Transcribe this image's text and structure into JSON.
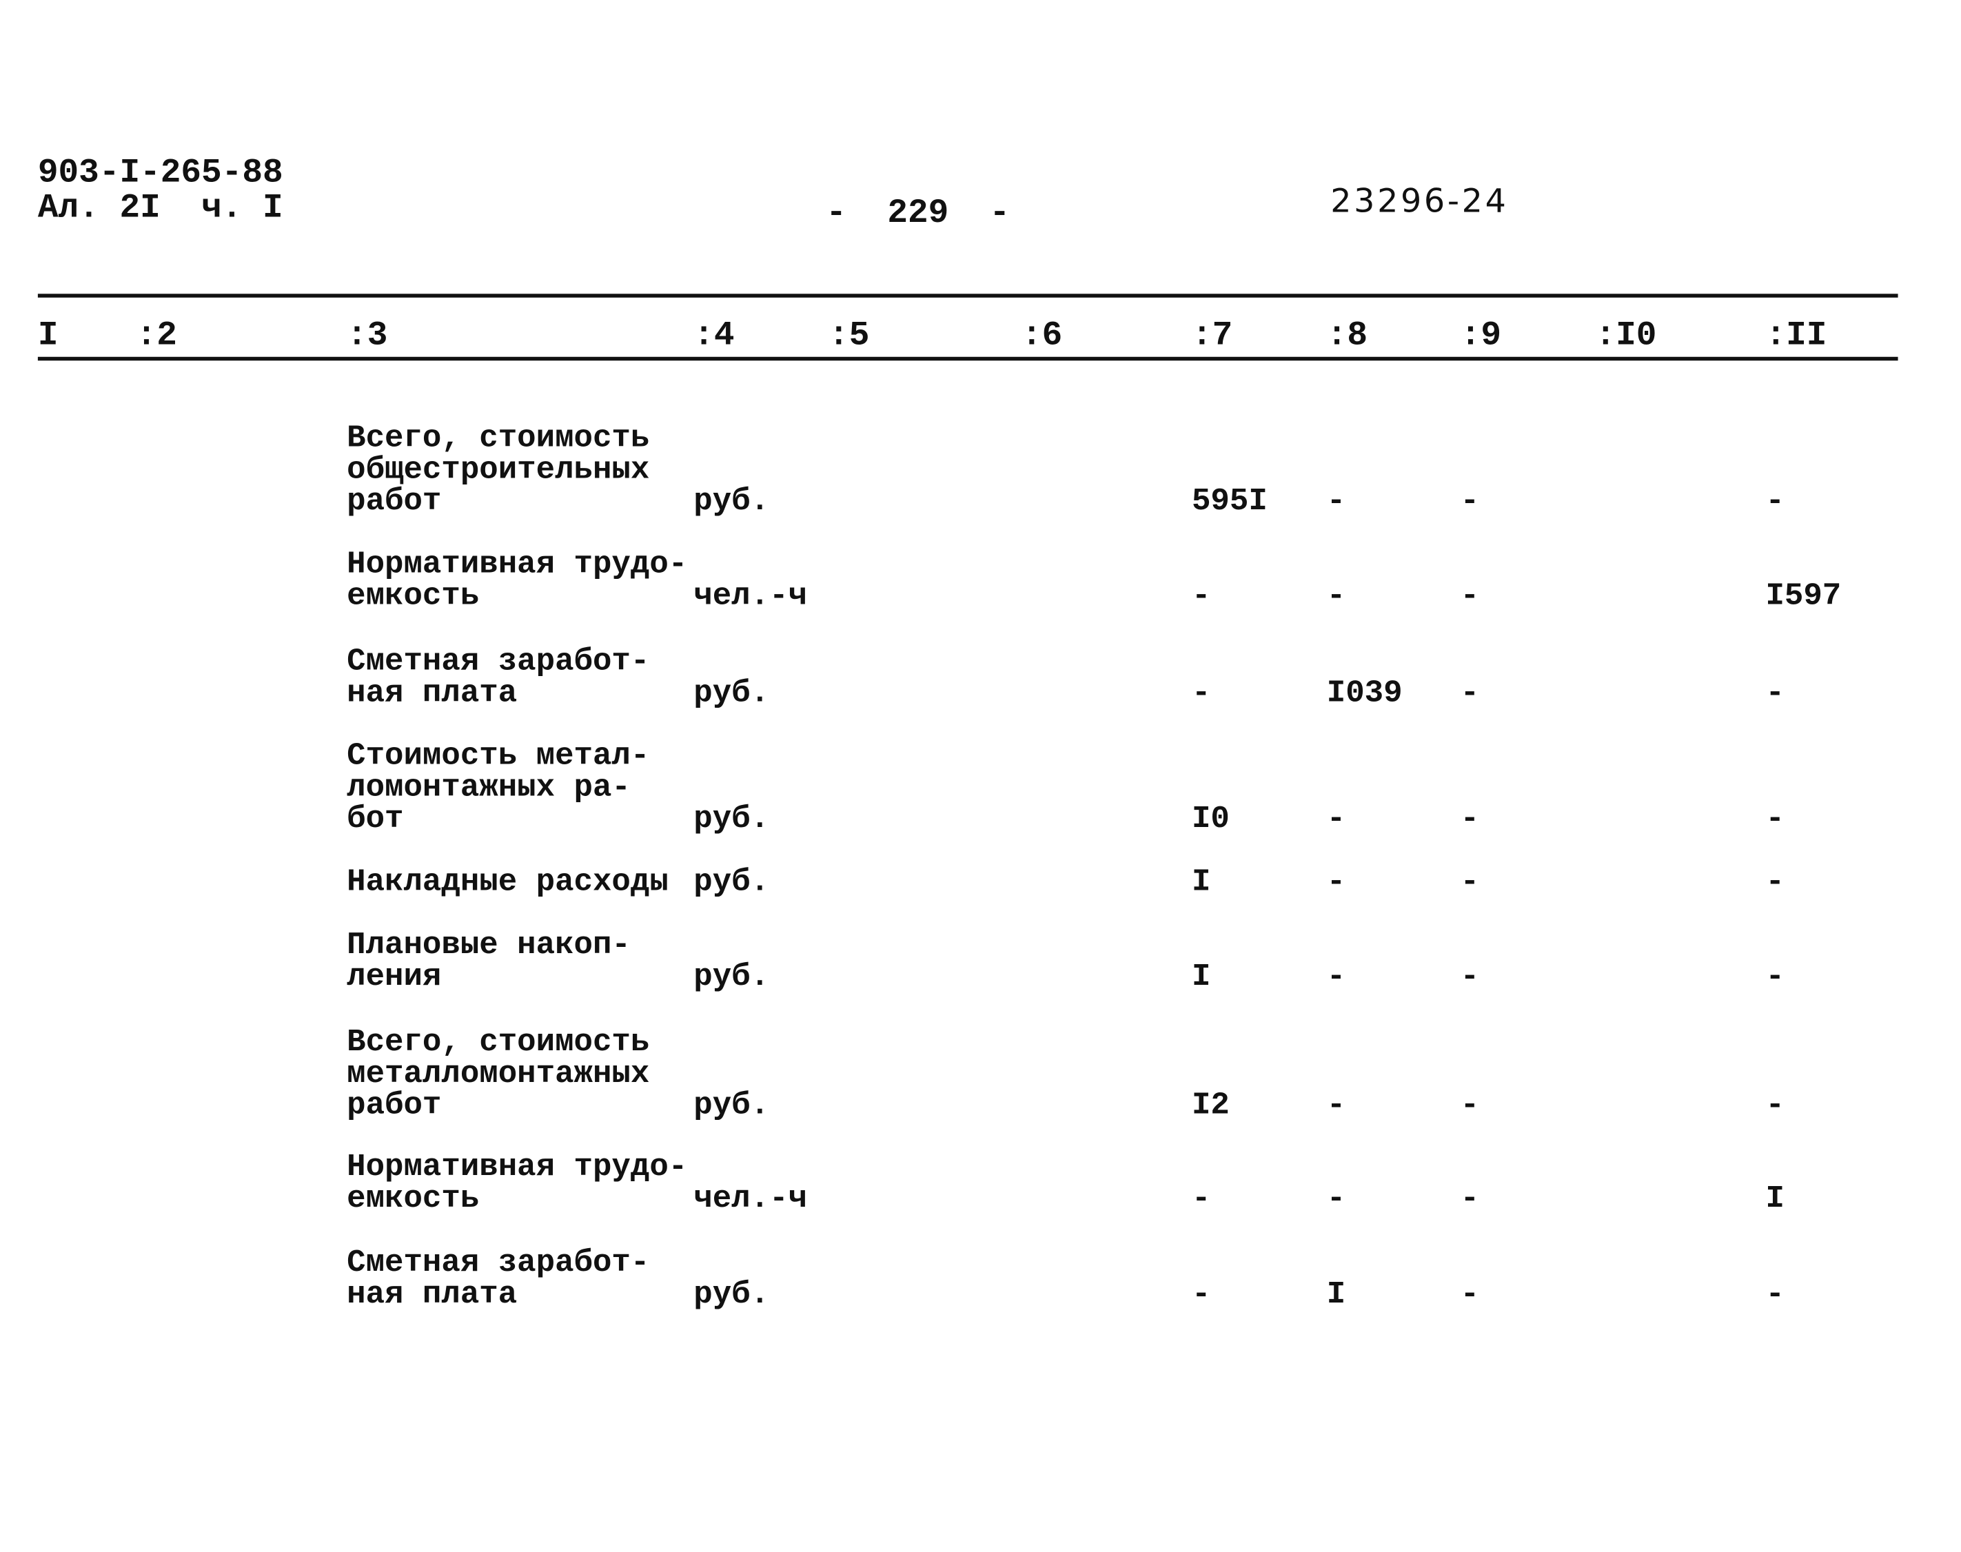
{
  "header": {
    "doc_code": "903-I-265-88",
    "sheet": "Ал. 2I  ч. I",
    "page_number": "-  229  -",
    "inventory_number": "23296-24"
  },
  "columns": [
    "I",
    ":2",
    ":3",
    ":4",
    ":5",
    ":6",
    ":7",
    ":8",
    ":9",
    ":I0",
    ":II"
  ],
  "rows": [
    {
      "description": "Всего, стоимость\nобщестроительных\nработ",
      "unit": "руб.",
      "c7": "595I",
      "c8": "-",
      "c9": "-",
      "c11": "-"
    },
    {
      "description": "Нормативная трудо-\nемкость",
      "unit": "чел.-ч",
      "c7": "-",
      "c8": "-",
      "c9": "-",
      "c11": "I597"
    },
    {
      "description": "Сметная заработ-\nная плата",
      "unit": "руб.",
      "c7": "-",
      "c8": "I039",
      "c9": "-",
      "c11": "-"
    },
    {
      "description": "Стоимость метал-\nломонтажных ра-\nбот",
      "unit": "руб.",
      "c7": "I0",
      "c8": "-",
      "c9": "-",
      "c11": "-"
    },
    {
      "description": "Накладные расходы",
      "unit": "руб.",
      "c7": "I",
      "c8": "-",
      "c9": "-",
      "c11": "-"
    },
    {
      "description": "Плановые накоп-\nления",
      "unit": "руб.",
      "c7": "I",
      "c8": "-",
      "c9": "-",
      "c11": "-"
    },
    {
      "description": "Всего, стоимость\nметалломонтажных\nработ",
      "unit": "руб.",
      "c7": "I2",
      "c8": "-",
      "c9": "-",
      "c11": "-"
    },
    {
      "description": "Нормативная трудо-\nемкость",
      "unit": "чел.-ч",
      "c7": "-",
      "c8": "-",
      "c9": "-",
      "c11": "I"
    },
    {
      "description": "Сметная заработ-\nная плата",
      "unit": "руб.",
      "c7": "-",
      "c8": "I",
      "c9": "-",
      "c11": "-"
    }
  ]
}
